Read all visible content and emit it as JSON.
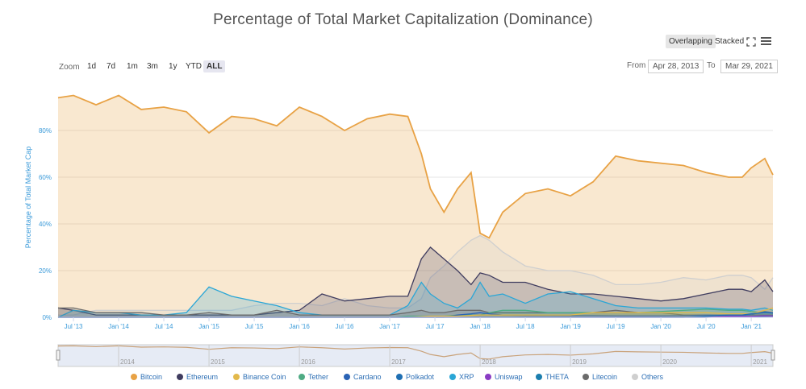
{
  "title": "Percentage of Total Market Capitalization (Dominance)",
  "toolbar": {
    "overlapping": "Overlapping",
    "stacked": "Stacked",
    "expand_icon": "expand-icon",
    "menu_icon": "hamburger-menu-icon"
  },
  "zoom": {
    "label": "Zoom",
    "buttons": [
      "1d",
      "7d",
      "1m",
      "3m",
      "1y",
      "YTD",
      "ALL"
    ],
    "active": "ALL"
  },
  "range": {
    "from_label": "From",
    "from_value": "Apr 28, 2013",
    "to_label": "To",
    "to_value": "Mar 29, 2021"
  },
  "navigator_labels": [
    "2014",
    "2015",
    "2016",
    "2017",
    "2018",
    "2019",
    "2020",
    "2021"
  ],
  "chart_data": {
    "type": "area",
    "title": "Percentage of Total Market Capitalization (Dominance)",
    "ylabel": "Percentage of Total Market Cap",
    "ylim": [
      0,
      100
    ],
    "yticks": [
      "0%",
      "20%",
      "40%",
      "60%",
      "80%"
    ],
    "grid": true,
    "legend_position": "bottom",
    "x_ticks": [
      "Jul '13",
      "Jan '14",
      "Jul '14",
      "Jan '15",
      "Jul '15",
      "Jan '16",
      "Jul '16",
      "Jan '17",
      "Jul '17",
      "Jan '18",
      "Jul '18",
      "Jan '19",
      "Jul '19",
      "Jan '20",
      "Jul '20",
      "Jan '21"
    ],
    "x": [
      2013.33,
      2013.5,
      2013.75,
      2014.0,
      2014.25,
      2014.5,
      2014.75,
      2015.0,
      2015.25,
      2015.5,
      2015.75,
      2016.0,
      2016.25,
      2016.5,
      2016.75,
      2017.0,
      2017.2,
      2017.35,
      2017.45,
      2017.6,
      2017.75,
      2017.9,
      2018.0,
      2018.1,
      2018.25,
      2018.5,
      2018.75,
      2019.0,
      2019.25,
      2019.5,
      2019.75,
      2020.0,
      2020.25,
      2020.5,
      2020.75,
      2020.9,
      2021.0,
      2021.15,
      2021.24
    ],
    "series": [
      {
        "name": "Bitcoin",
        "color": "#e8a245",
        "values": [
          94,
          95,
          91,
          95,
          89,
          90,
          88,
          79,
          86,
          85,
          82,
          90,
          86,
          80,
          85,
          87,
          86,
          70,
          55,
          45,
          55,
          62,
          36,
          34,
          45,
          53,
          55,
          52,
          58,
          69,
          67,
          66,
          65,
          62,
          60,
          60,
          64,
          68,
          61
        ]
      },
      {
        "name": "Ethereum",
        "color": "#3f3c5f",
        "values": [
          4,
          3,
          1,
          1,
          1,
          1,
          1,
          1,
          1,
          1,
          2,
          3,
          10,
          7,
          8,
          9,
          9,
          25,
          30,
          25,
          20,
          14,
          19,
          18,
          15,
          15,
          12,
          10,
          10,
          9,
          8,
          7,
          8,
          10,
          12,
          12,
          11,
          16,
          11
        ]
      },
      {
        "name": "Binance Coin",
        "color": "#e3b94b",
        "values": [
          0,
          0,
          0,
          0,
          0,
          0,
          0,
          0,
          0,
          0,
          0,
          0,
          0,
          0,
          0,
          0,
          0,
          0.3,
          0.5,
          0.5,
          0.5,
          0.8,
          1,
          1,
          1,
          1,
          1,
          1,
          2,
          2,
          2,
          2,
          2,
          2,
          1.5,
          1.5,
          1.5,
          3,
          4
        ]
      },
      {
        "name": "Tether",
        "color": "#4fab84",
        "values": [
          0,
          0,
          0,
          0,
          0,
          0,
          0,
          0,
          0,
          0,
          0,
          0,
          0,
          0,
          0,
          0,
          0.5,
          0.5,
          0.5,
          0.5,
          1,
          1,
          1,
          2,
          3,
          3,
          2,
          2,
          2,
          2,
          2,
          2.5,
          3,
          3.5,
          3,
          3,
          2.5,
          2,
          2
        ]
      },
      {
        "name": "Cardano",
        "color": "#2a63b5",
        "values": [
          0,
          0,
          0,
          0,
          0,
          0,
          0,
          0,
          0,
          0,
          0,
          0,
          0,
          0,
          0,
          0,
          0,
          0,
          0,
          0,
          1,
          1.5,
          2,
          1.5,
          1,
          0.8,
          0.8,
          0.7,
          0.7,
          0.6,
          0.6,
          0.6,
          0.7,
          1,
          0.8,
          0.8,
          1.2,
          2.5,
          2
        ]
      },
      {
        "name": "Polkadot",
        "color": "#1f6fb3",
        "values": [
          0,
          0,
          0,
          0,
          0,
          0,
          0,
          0,
          0,
          0,
          0,
          0,
          0,
          0,
          0,
          0,
          0,
          0,
          0,
          0,
          0,
          0,
          0,
          0,
          0,
          0,
          0,
          0,
          0,
          0,
          0,
          0,
          0,
          0.5,
          1,
          1,
          1.5,
          2,
          1.8
        ]
      },
      {
        "name": "XRP",
        "color": "#2aa6d6",
        "values": [
          0,
          3,
          2,
          2,
          1,
          1,
          2,
          13,
          9,
          7,
          5,
          2,
          1,
          1,
          1,
          1,
          5,
          15,
          10,
          6,
          4,
          8,
          15,
          9,
          10,
          6,
          10,
          11,
          8,
          5,
          4,
          4,
          4,
          4,
          3.5,
          3.5,
          3,
          4,
          3
        ]
      },
      {
        "name": "Uniswap",
        "color": "#8a3cc4",
        "values": [
          0,
          0,
          0,
          0,
          0,
          0,
          0,
          0,
          0,
          0,
          0,
          0,
          0,
          0,
          0,
          0,
          0,
          0,
          0,
          0,
          0,
          0,
          0,
          0,
          0,
          0,
          0,
          0,
          0,
          0,
          0,
          0,
          0,
          0,
          0.5,
          0.5,
          0.4,
          0.7,
          0.6
        ]
      },
      {
        "name": "THETA",
        "color": "#1b7eae",
        "values": [
          0,
          0,
          0,
          0,
          0,
          0,
          0,
          0,
          0,
          0,
          0,
          0,
          0,
          0,
          0,
          0,
          0,
          0,
          0,
          0,
          0,
          0,
          0,
          0,
          0,
          0,
          0,
          0,
          0,
          0,
          0,
          0,
          0,
          0,
          0.2,
          0.2,
          0.3,
          0.5,
          0.6
        ]
      },
      {
        "name": "Litecoin",
        "color": "#6b6b6b",
        "values": [
          4,
          4,
          2,
          2,
          2,
          1,
          1,
          2,
          1,
          1,
          3,
          1,
          1,
          1,
          1,
          1,
          2,
          3,
          2,
          2,
          3,
          3,
          3,
          2,
          2,
          2,
          2,
          2,
          2,
          3,
          2,
          2,
          1,
          1,
          1,
          1,
          1,
          1,
          1
        ]
      },
      {
        "name": "Others",
        "color": "#cfcfcf",
        "values": [
          1,
          1,
          3,
          3,
          3,
          3,
          3,
          3,
          3,
          5,
          6,
          6,
          5,
          8,
          5,
          4,
          4,
          8,
          17,
          22,
          28,
          33,
          35,
          33,
          28,
          22,
          20,
          20,
          18,
          14,
          14,
          15,
          17,
          16,
          18,
          18,
          17,
          12,
          17
        ]
      }
    ]
  }
}
